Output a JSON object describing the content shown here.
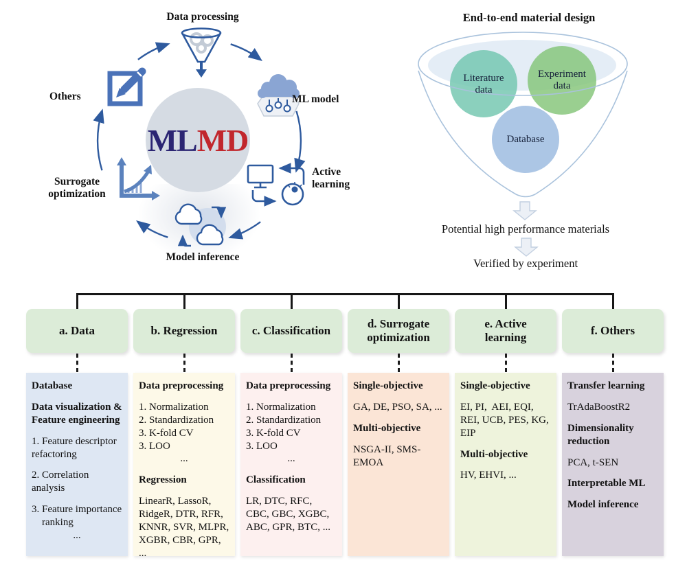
{
  "cycle": {
    "center": {
      "ml": "ML",
      "md": "MD"
    },
    "nodes": [
      {
        "label": "Data processing",
        "icon": "funnel-icon"
      },
      {
        "label": "ML model",
        "icon": "cloud-network-icon"
      },
      {
        "label": "Active\nlearning",
        "icon": "monitor-head-icon"
      },
      {
        "label": "Model inference",
        "icon": "clouds-cycle-icon"
      },
      {
        "label": "Surrogate\noptimization",
        "icon": "chart-growth-icon"
      },
      {
        "label": "Others",
        "icon": "edit-pencil-icon"
      }
    ]
  },
  "funnel": {
    "title": "End-to-end material design",
    "circles": [
      {
        "label": "Literature\ndata",
        "color": "#72c6ae"
      },
      {
        "label": "Experiment\ndata",
        "color": "#84c478"
      },
      {
        "label": "Database",
        "color": "#a3c0e2"
      }
    ],
    "outputs": [
      "Potential high performance materials",
      "Verified by experiment"
    ]
  },
  "taxonomy": {
    "columns": [
      {
        "id": "a",
        "header": "a. Data",
        "color": "#dee7f3",
        "items": [
          {
            "kind": "h",
            "text": "Database"
          },
          {
            "kind": "h",
            "text": "Data visualization &\nFeature engineering"
          },
          {
            "kind": "p",
            "text": "1. Feature descriptor refactoring"
          },
          {
            "kind": "p",
            "text": "2. Correlation analysis"
          },
          {
            "kind": "p",
            "text": "3. Feature importance\n    ranking"
          },
          {
            "kind": "dots",
            "text": "..."
          }
        ]
      },
      {
        "id": "b",
        "header": "b. Regression",
        "color": "#fdf9e8",
        "items": [
          {
            "kind": "h",
            "text": "Data preprocessing"
          },
          {
            "kind": "p",
            "text": "1. Normalization"
          },
          {
            "kind": "li",
            "text": "2. Standardization"
          },
          {
            "kind": "li",
            "text": "3. K-fold CV"
          },
          {
            "kind": "li",
            "text": "3. LOO"
          },
          {
            "kind": "dots",
            "text": "..."
          },
          {
            "kind": "h",
            "text": "Regression"
          },
          {
            "kind": "p",
            "text": "LinearR, LassoR, RidgeR, DTR, RFR, KNNR, SVR, MLPR, XGBR, CBR, GPR, ..."
          }
        ]
      },
      {
        "id": "c",
        "header": "c. Classification",
        "color": "#fdf0ef",
        "items": [
          {
            "kind": "h",
            "text": "Data preprocessing"
          },
          {
            "kind": "p",
            "text": "1. Normalization"
          },
          {
            "kind": "li",
            "text": "2. Standardization"
          },
          {
            "kind": "li",
            "text": "3. K-fold CV"
          },
          {
            "kind": "li",
            "text": "3. LOO"
          },
          {
            "kind": "dots",
            "text": "..."
          },
          {
            "kind": "h",
            "text": "Classification"
          },
          {
            "kind": "p",
            "text": "LR, DTC, RFC, CBC, GBC, XGBC, ABC, GPR, BTC, ..."
          }
        ]
      },
      {
        "id": "d",
        "header": "d. Surrogate\noptimization",
        "color": "#fbe5d6",
        "items": [
          {
            "kind": "h",
            "text": "Single-objective"
          },
          {
            "kind": "p",
            "text": "GA, DE, PSO, SA, ..."
          },
          {
            "kind": "h",
            "text": "Multi-objective"
          },
          {
            "kind": "p",
            "text": "NSGA-II, SMS-EMOA"
          }
        ]
      },
      {
        "id": "e",
        "header": "e. Active\nlearning",
        "color": "#eef3dc",
        "items": [
          {
            "kind": "h",
            "text": "Single-objective"
          },
          {
            "kind": "p",
            "text": "EI, PI,  AEI, EQI, REI, UCB, PES, KG, EIP"
          },
          {
            "kind": "h",
            "text": "Multi-objective"
          },
          {
            "kind": "p",
            "text": "HV, EHVI, ..."
          }
        ]
      },
      {
        "id": "f",
        "header": "f. Others",
        "color": "#d8d2dd",
        "items": [
          {
            "kind": "h",
            "text": "Transfer learning"
          },
          {
            "kind": "p",
            "text": "TrAdaBoostR2"
          },
          {
            "kind": "h",
            "text": "Dimensionality reduction"
          },
          {
            "kind": "p",
            "text": "PCA, t-SEN"
          },
          {
            "kind": "h",
            "text": "Interpretable ML"
          },
          {
            "kind": "h",
            "text": "Model inference"
          }
        ]
      }
    ]
  },
  "colors": {
    "icon_blue": "#2e5a9e",
    "header_green": "#dcecd8",
    "mlmd_navy": "#2b2573",
    "mlmd_red": "#c1272d",
    "tree_line": "#171717"
  }
}
